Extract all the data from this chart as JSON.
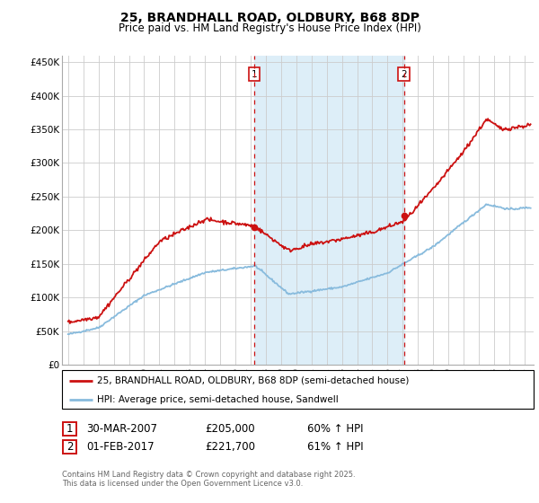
{
  "title": "25, BRANDHALL ROAD, OLDBURY, B68 8DP",
  "subtitle": "Price paid vs. HM Land Registry's House Price Index (HPI)",
  "ytick_values": [
    0,
    50000,
    100000,
    150000,
    200000,
    250000,
    300000,
    350000,
    400000,
    450000
  ],
  "ylabel_ticks": [
    "£0",
    "£50K",
    "£100K",
    "£150K",
    "£200K",
    "£250K",
    "£300K",
    "£350K",
    "£400K",
    "£450K"
  ],
  "ylim": [
    0,
    460000
  ],
  "xlim_start": 1994.6,
  "xlim_end": 2025.6,
  "hpi_color": "#88bbdd",
  "price_color": "#cc1111",
  "marker1_date": 2007.24,
  "marker1_price": 205000,
  "marker2_date": 2017.08,
  "marker2_price": 221700,
  "shade_color": "#ddeef8",
  "vline_color": "#cc1111",
  "legend_label_price": "25, BRANDHALL ROAD, OLDBURY, B68 8DP (semi-detached house)",
  "legend_label_hpi": "HPI: Average price, semi-detached house, Sandwell",
  "table_row1_num": "1",
  "table_row1_date": "30-MAR-2007",
  "table_row1_price": "£205,000",
  "table_row1_hpi": "60% ↑ HPI",
  "table_row2_num": "2",
  "table_row2_date": "01-FEB-2017",
  "table_row2_price": "£221,700",
  "table_row2_hpi": "61% ↑ HPI",
  "footer_line1": "Contains HM Land Registry data © Crown copyright and database right 2025.",
  "footer_line2": "This data is licensed under the Open Government Licence v3.0."
}
